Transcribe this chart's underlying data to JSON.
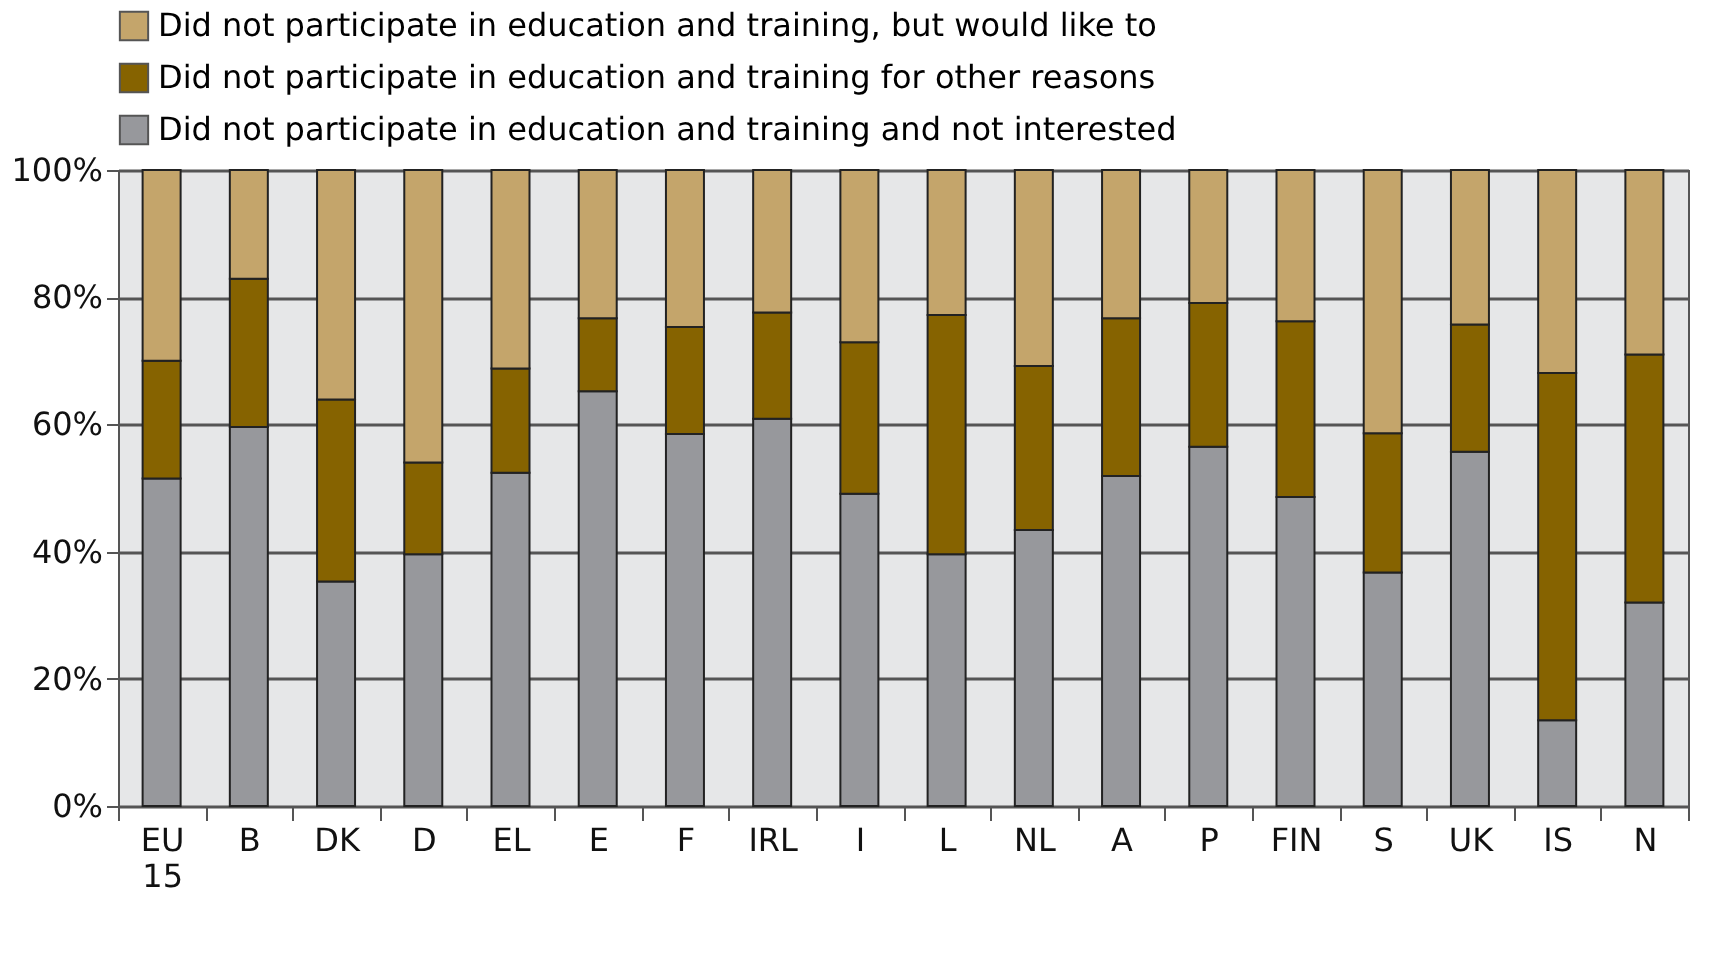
{
  "chart_data": {
    "type": "bar",
    "stacked": true,
    "categories": [
      "EU 15",
      "B",
      "DK",
      "D",
      "EL",
      "E",
      "F",
      "IRL",
      "I",
      "L",
      "NL",
      "A",
      "P",
      "FIN",
      "S",
      "UK",
      "IS",
      "N"
    ],
    "series": [
      {
        "name": "Did not participate in education and training and not interested",
        "color": "#97989c",
        "values": [
          51.5,
          59.6,
          35.3,
          39.6,
          52.4,
          65.2,
          58.5,
          60.9,
          49.1,
          39.6,
          43.4,
          51.9,
          56.5,
          48.6,
          36.7,
          55.7,
          13.5,
          32.0
        ]
      },
      {
        "name": "Did not participate in education and training for other reasons",
        "color": "#866300",
        "values": [
          18.5,
          23.3,
          28.6,
          14.4,
          16.4,
          11.5,
          16.8,
          16.7,
          23.8,
          37.6,
          25.8,
          24.8,
          22.6,
          27.6,
          21.9,
          20.0,
          54.6,
          39.0
        ]
      },
      {
        "name": "Did not participate in education and training, but would like to",
        "color": "#c4a56b",
        "values": [
          30.0,
          17.1,
          36.1,
          46.0,
          31.2,
          23.3,
          24.7,
          22.4,
          27.1,
          22.8,
          30.8,
          23.3,
          20.9,
          23.8,
          41.4,
          24.3,
          31.9,
          29.0
        ]
      }
    ],
    "ylim": [
      0,
      100
    ],
    "yticks": [
      {
        "value": 0,
        "label": "0%"
      },
      {
        "value": 20,
        "label": "20%"
      },
      {
        "value": 40,
        "label": "40%"
      },
      {
        "value": 60,
        "label": "60%"
      },
      {
        "value": 80,
        "label": "80%"
      },
      {
        "value": 100,
        "label": "100%"
      }
    ],
    "grid": "y",
    "legend": "top left"
  }
}
